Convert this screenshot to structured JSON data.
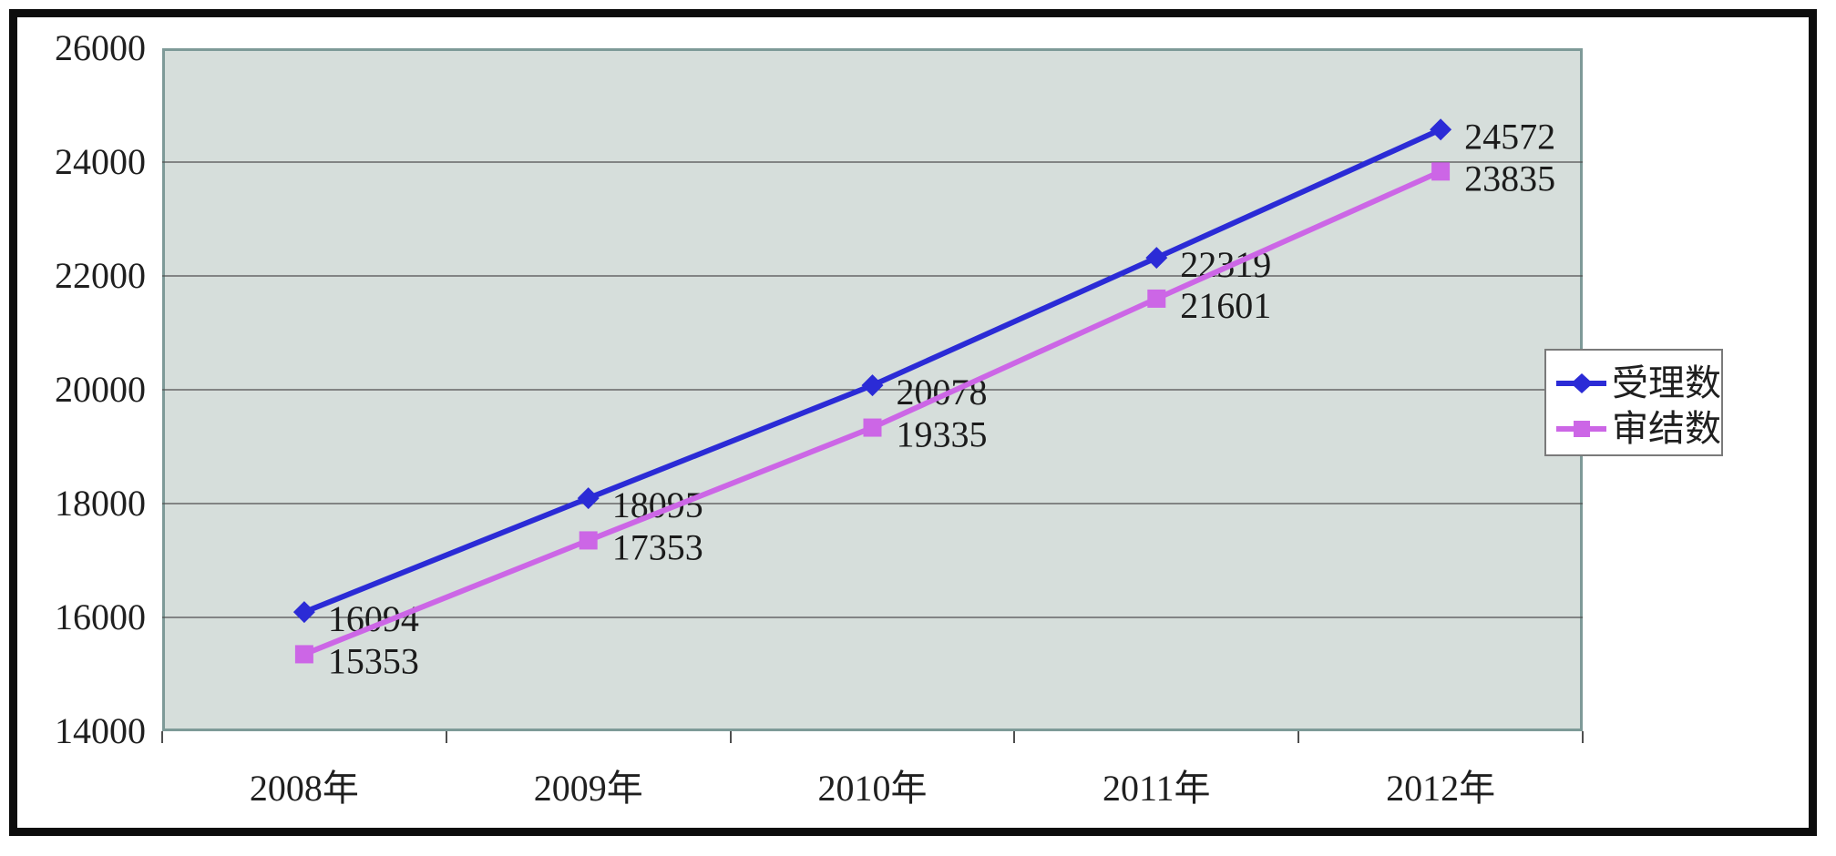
{
  "chart_data": {
    "type": "line",
    "title": "",
    "categories": [
      "2008年",
      "2009年",
      "2010年",
      "2011年",
      "2012年"
    ],
    "series": [
      {
        "name": "受理数",
        "values": [
          16094,
          18095,
          20078,
          22319,
          24572
        ],
        "color": "#2b2bd6",
        "marker": "diamond"
      },
      {
        "name": "审结数",
        "values": [
          15353,
          17353,
          19335,
          21601,
          23835
        ],
        "color": "#cc66e6",
        "marker": "square"
      }
    ],
    "ylim": [
      14000,
      26000
    ],
    "y_tick_interval": 2000,
    "y_tick_labels": [
      "14000",
      "16000",
      "18000",
      "20000",
      "22000",
      "24000",
      "26000"
    ],
    "grid": true,
    "data_labels": true,
    "legend_position": "right",
    "colors": {
      "plot_bg": "#d6dedb",
      "plot_border": "#7e9a98",
      "gridline": "#4f4f4f",
      "frame": "#0d0d0d",
      "text": "#1b1b1b"
    }
  },
  "legend": {
    "items": [
      {
        "label": "受理数"
      },
      {
        "label": "审结数"
      }
    ]
  }
}
